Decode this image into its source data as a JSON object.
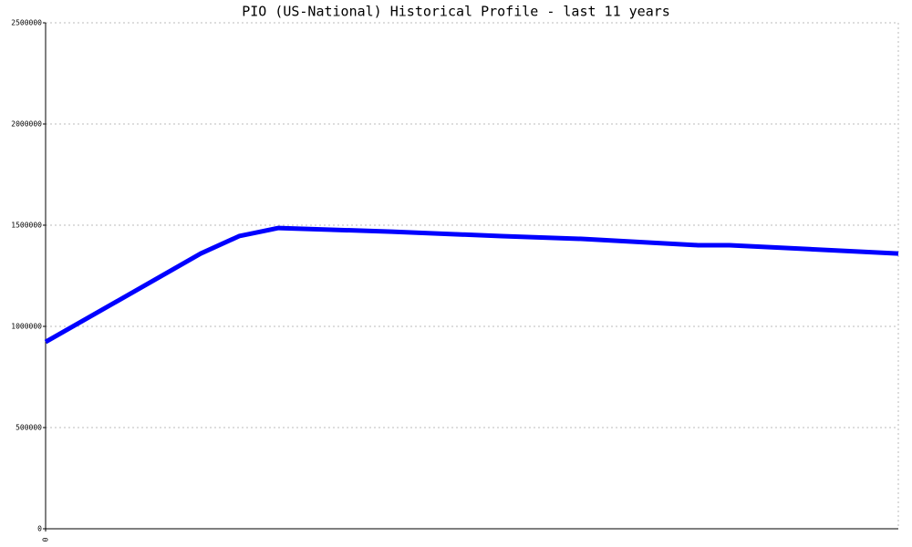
{
  "chart_data": {
    "type": "line",
    "title": "PIO (US-National) Historical Profile - last 11 years",
    "x": [
      0,
      18.2,
      22.7,
      27.3,
      40.6,
      53.5,
      63.1,
      76.5,
      80.2,
      100
    ],
    "xlim": [
      0,
      100
    ],
    "xticks": [
      0
    ],
    "series": [
      {
        "name": "PIO",
        "color": "#0000ff",
        "values": [
          923000,
          1360000,
          1446000,
          1486000,
          1468000,
          1446000,
          1432000,
          1401000,
          1401000,
          1360000
        ]
      }
    ],
    "ylim": [
      0,
      2500000
    ],
    "yticks": [
      0,
      500000,
      1000000,
      1500000,
      2000000,
      2500000
    ],
    "grid": true
  }
}
